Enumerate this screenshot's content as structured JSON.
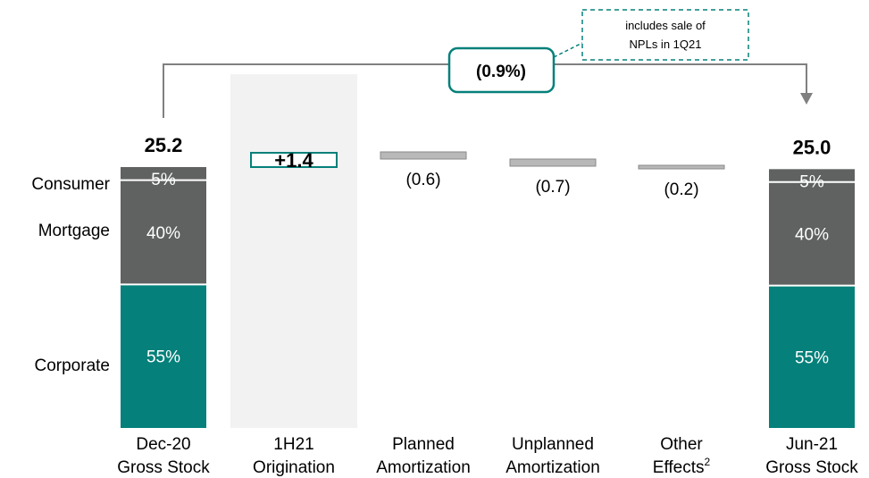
{
  "chart_data": {
    "type": "waterfall",
    "unit": "",
    "categories": [
      {
        "line1": "Dec-20",
        "line2": "Gross Stock",
        "sup": ""
      },
      {
        "line1": "1H21",
        "line2": "Origination",
        "sup": ""
      },
      {
        "line1": "Planned",
        "line2": "Amortization",
        "sup": ""
      },
      {
        "line1": "Unplanned",
        "line2": "Amortization",
        "sup": ""
      },
      {
        "line1": "Other",
        "line2": "Effects",
        "sup": "2"
      },
      {
        "line1": "Jun-21",
        "line2": "Gross Stock",
        "sup": ""
      }
    ],
    "start_total": {
      "value": 25.2,
      "label": "25.2"
    },
    "end_total": {
      "value": 25.0,
      "label": "25.0"
    },
    "steps": [
      {
        "value": 1.4,
        "label": "+1.4"
      },
      {
        "value": -0.6,
        "label": "(0.6)"
      },
      {
        "value": -0.7,
        "label": "(0.7)"
      },
      {
        "value": -0.2,
        "label": "(0.2)"
      }
    ],
    "segments": [
      {
        "name": "Corporate",
        "share": 55,
        "label": "55%",
        "color": "#05807a"
      },
      {
        "name": "Mortgage",
        "share": 40,
        "label": "40%",
        "color": "#5f6260"
      },
      {
        "name": "Consumer",
        "share": 5,
        "label": "5%",
        "color": "#5f6260"
      }
    ],
    "change_callout": {
      "label": "(0.9%)"
    },
    "note": {
      "line1": "includes sale of",
      "line2": "NPLs in 1Q21"
    },
    "highlight_category": 1,
    "colors": {
      "accent": "#05807a",
      "dark": "#5f6260",
      "step": "#b8b8b8",
      "highlight_bg": "#f2f2f2",
      "connector": "#808080"
    }
  }
}
